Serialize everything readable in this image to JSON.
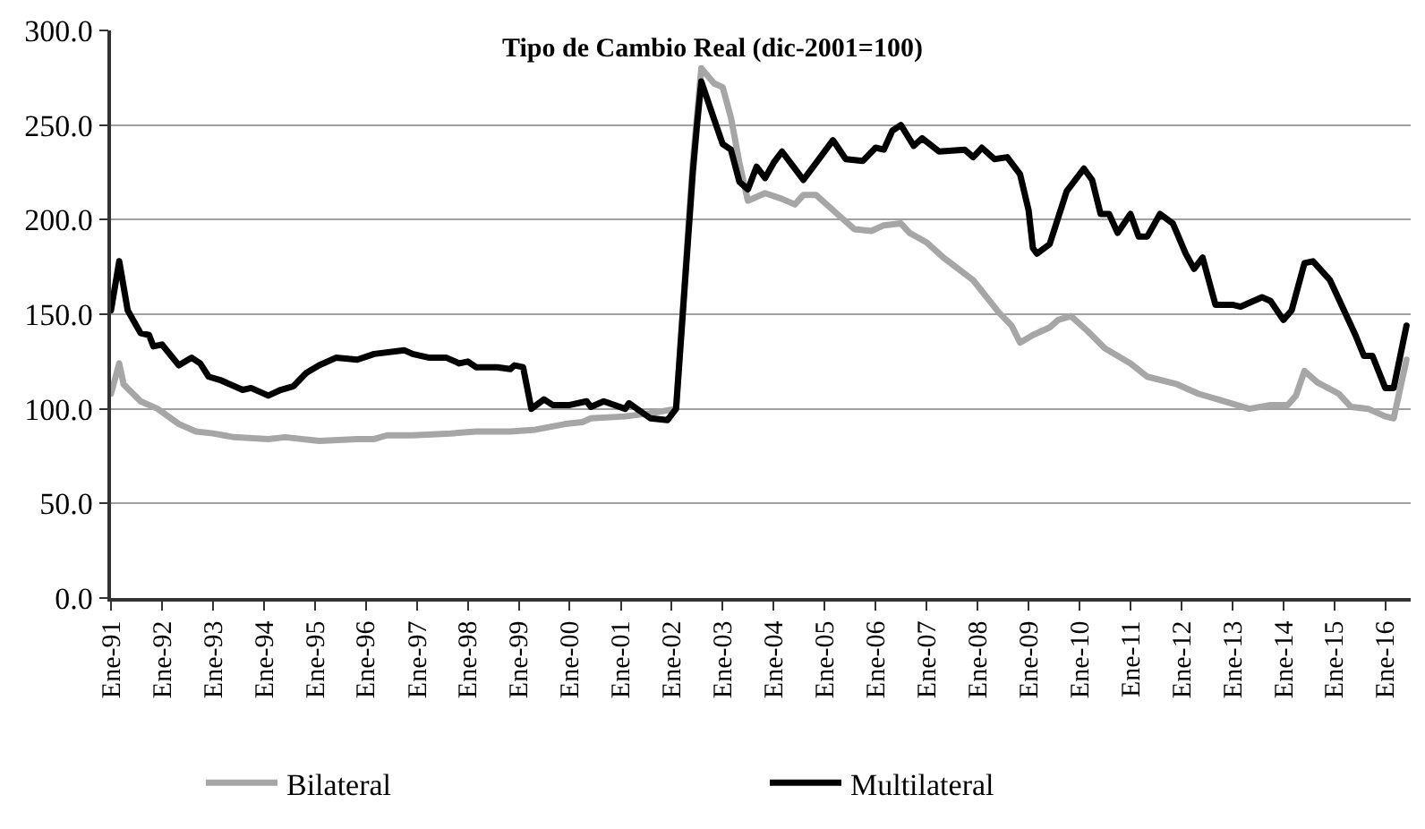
{
  "chart_data": {
    "type": "line",
    "title": "Tipo de Cambio Real (dic-2001=100)",
    "xlim": [
      "1991-01",
      "2016-07"
    ],
    "xticks": [
      {
        "value": "1991-01",
        "label": "Ene-91"
      },
      {
        "value": "1992-01",
        "label": "Ene-92"
      },
      {
        "value": "1993-01",
        "label": "Ene-93"
      },
      {
        "value": "1994-01",
        "label": "Ene-94"
      },
      {
        "value": "1995-01",
        "label": "Ene-95"
      },
      {
        "value": "1996-01",
        "label": "Ene-96"
      },
      {
        "value": "1997-01",
        "label": "Ene-97"
      },
      {
        "value": "1998-01",
        "label": "Ene-98"
      },
      {
        "value": "1999-01",
        "label": "Ene-99"
      },
      {
        "value": "2000-01",
        "label": "Ene-00"
      },
      {
        "value": "2001-01",
        "label": "Ene-01"
      },
      {
        "value": "2002-01",
        "label": "Ene-02"
      },
      {
        "value": "2003-01",
        "label": "Ene-03"
      },
      {
        "value": "2004-01",
        "label": "Ene-04"
      },
      {
        "value": "2005-01",
        "label": "Ene-05"
      },
      {
        "value": "2006-01",
        "label": "Ene-06"
      },
      {
        "value": "2007-01",
        "label": "Ene-07"
      },
      {
        "value": "2008-01",
        "label": "Ene-08"
      },
      {
        "value": "2009-01",
        "label": "Ene-09"
      },
      {
        "value": "2010-01",
        "label": "Ene-10"
      },
      {
        "value": "2011-01",
        "label": "Ene-11"
      },
      {
        "value": "2012-01",
        "label": "Ene-12"
      },
      {
        "value": "2013-01",
        "label": "Ene-13"
      },
      {
        "value": "2014-01",
        "label": "Ene-14"
      },
      {
        "value": "2015-01",
        "label": "Ene-15"
      },
      {
        "value": "2016-01",
        "label": "Ene-16"
      }
    ],
    "ylim": [
      0,
      300
    ],
    "yticks": [
      {
        "value": 0,
        "label": "0.0"
      },
      {
        "value": 50,
        "label": "50.0"
      },
      {
        "value": 100,
        "label": "100.0"
      },
      {
        "value": 150,
        "label": "150.0"
      },
      {
        "value": 200,
        "label": "200.0"
      },
      {
        "value": 250,
        "label": "250.0"
      },
      {
        "value": 300,
        "label": "300.0"
      }
    ],
    "grid": "y",
    "legend": "bottom",
    "marker": "none",
    "line_style": "solid",
    "series": [
      {
        "name": "Bilateral",
        "color": "#a6a6a6",
        "x": [
          "1991-01",
          "1991-03",
          "1991-04",
          "1991-08",
          "1991-12",
          "1992-05",
          "1992-09",
          "1993-01",
          "1993-06",
          "1994-02",
          "1994-06",
          "1995-02",
          "1995-11",
          "1996-03",
          "1996-06",
          "1996-12",
          "1997-09",
          "1998-03",
          "1998-11",
          "1999-05",
          "1999-12",
          "2000-04",
          "2000-06",
          "2001-02",
          "2001-09",
          "2002-02",
          "2002-06",
          "2002-08",
          "2002-11",
          "2003-01",
          "2003-03",
          "2003-05",
          "2003-07",
          "2003-11",
          "2004-03",
          "2004-06",
          "2004-08",
          "2004-11",
          "2005-04",
          "2005-08",
          "2005-12",
          "2006-03",
          "2006-07",
          "2006-09",
          "2007-01",
          "2007-05",
          "2007-12",
          "2008-06",
          "2008-09",
          "2008-11",
          "2009-02",
          "2009-06",
          "2009-08",
          "2009-11",
          "2010-03",
          "2010-07",
          "2011-01",
          "2011-05",
          "2011-12",
          "2012-05",
          "2012-11",
          "2013-05",
          "2013-10",
          "2014-02",
          "2014-04",
          "2014-06",
          "2014-09",
          "2015-02",
          "2015-05",
          "2015-09",
          "2016-01",
          "2016-03",
          "2016-06"
        ],
        "values": [
          108,
          124,
          113,
          104,
          100,
          92,
          88,
          87,
          85,
          84,
          85,
          83,
          84,
          84,
          86,
          86,
          87,
          88,
          88,
          89,
          92,
          93,
          95,
          96,
          98,
          100,
          230,
          280,
          272,
          270,
          254,
          230,
          210,
          214,
          211,
          208,
          213,
          213,
          203,
          195,
          194,
          197,
          198,
          193,
          188,
          180,
          168,
          151,
          144,
          135,
          139,
          143,
          147,
          149,
          141,
          132,
          124,
          117,
          113,
          108,
          104,
          100,
          102,
          102,
          107,
          120,
          114,
          108,
          101,
          100,
          96,
          95,
          126
        ]
      },
      {
        "name": "Multilateral",
        "color": "#000000",
        "x": [
          "1991-01",
          "1991-03",
          "1991-05",
          "1991-08",
          "1991-10",
          "1991-11",
          "1992-01",
          "1992-05",
          "1992-08",
          "1992-10",
          "1992-12",
          "1993-03",
          "1993-08",
          "1993-10",
          "1994-02",
          "1994-05",
          "1994-08",
          "1994-11",
          "1995-02",
          "1995-06",
          "1995-11",
          "1996-03",
          "1996-10",
          "1996-12",
          "1997-04",
          "1997-08",
          "1997-11",
          "1998-01",
          "1998-03",
          "1998-08",
          "1998-11",
          "1998-12",
          "1999-02",
          "1999-04",
          "1999-07",
          "1999-09",
          "2000-01",
          "2000-05",
          "2000-06",
          "2000-09",
          "2001-02",
          "2001-03",
          "2001-08",
          "2001-12",
          "2002-02",
          "2002-06",
          "2002-07",
          "2002-08",
          "2002-11",
          "2003-01",
          "2003-03",
          "2003-05",
          "2003-07",
          "2003-09",
          "2003-11",
          "2004-01",
          "2004-03",
          "2004-05",
          "2004-08",
          "2004-11",
          "2005-03",
          "2005-06",
          "2005-10",
          "2006-01",
          "2006-03",
          "2006-05",
          "2006-07",
          "2006-10",
          "2006-12",
          "2007-04",
          "2007-10",
          "2007-12",
          "2008-02",
          "2008-05",
          "2008-08",
          "2008-11",
          "2009-01",
          "2009-02",
          "2009-03",
          "2009-06",
          "2009-10",
          "2010-02",
          "2010-04",
          "2010-06",
          "2010-08",
          "2010-10",
          "2011-01",
          "2011-03",
          "2011-05",
          "2011-08",
          "2011-11",
          "2012-02",
          "2012-04",
          "2012-06",
          "2012-09",
          "2013-01",
          "2013-03",
          "2013-08",
          "2013-10",
          "2014-01",
          "2014-03",
          "2014-06",
          "2014-08",
          "2014-12",
          "2015-05",
          "2015-06",
          "2015-08",
          "2015-10",
          "2016-01",
          "2016-03",
          "2016-06"
        ],
        "values": [
          152,
          178,
          152,
          140,
          139,
          133,
          134,
          123,
          127,
          124,
          117,
          115,
          110,
          111,
          107,
          110,
          112,
          119,
          123,
          127,
          126,
          129,
          131,
          129,
          127,
          127,
          124,
          125,
          122,
          122,
          121,
          123,
          122,
          100,
          105,
          102,
          102,
          104,
          101,
          104,
          100,
          103,
          95,
          94,
          100,
          225,
          250,
          273,
          253,
          240,
          237,
          220,
          216,
          228,
          222,
          230,
          236,
          230,
          221,
          230,
          242,
          232,
          231,
          238,
          237,
          247,
          250,
          239,
          243,
          236,
          237,
          233,
          238,
          232,
          233,
          224,
          205,
          185,
          182,
          187,
          215,
          227,
          221,
          203,
          203,
          193,
          203,
          191,
          191,
          203,
          198,
          182,
          174,
          180,
          155,
          155,
          154,
          159,
          157,
          147,
          152,
          177,
          178,
          168,
          144,
          139,
          128,
          128,
          111,
          111,
          144
        ]
      }
    ]
  }
}
